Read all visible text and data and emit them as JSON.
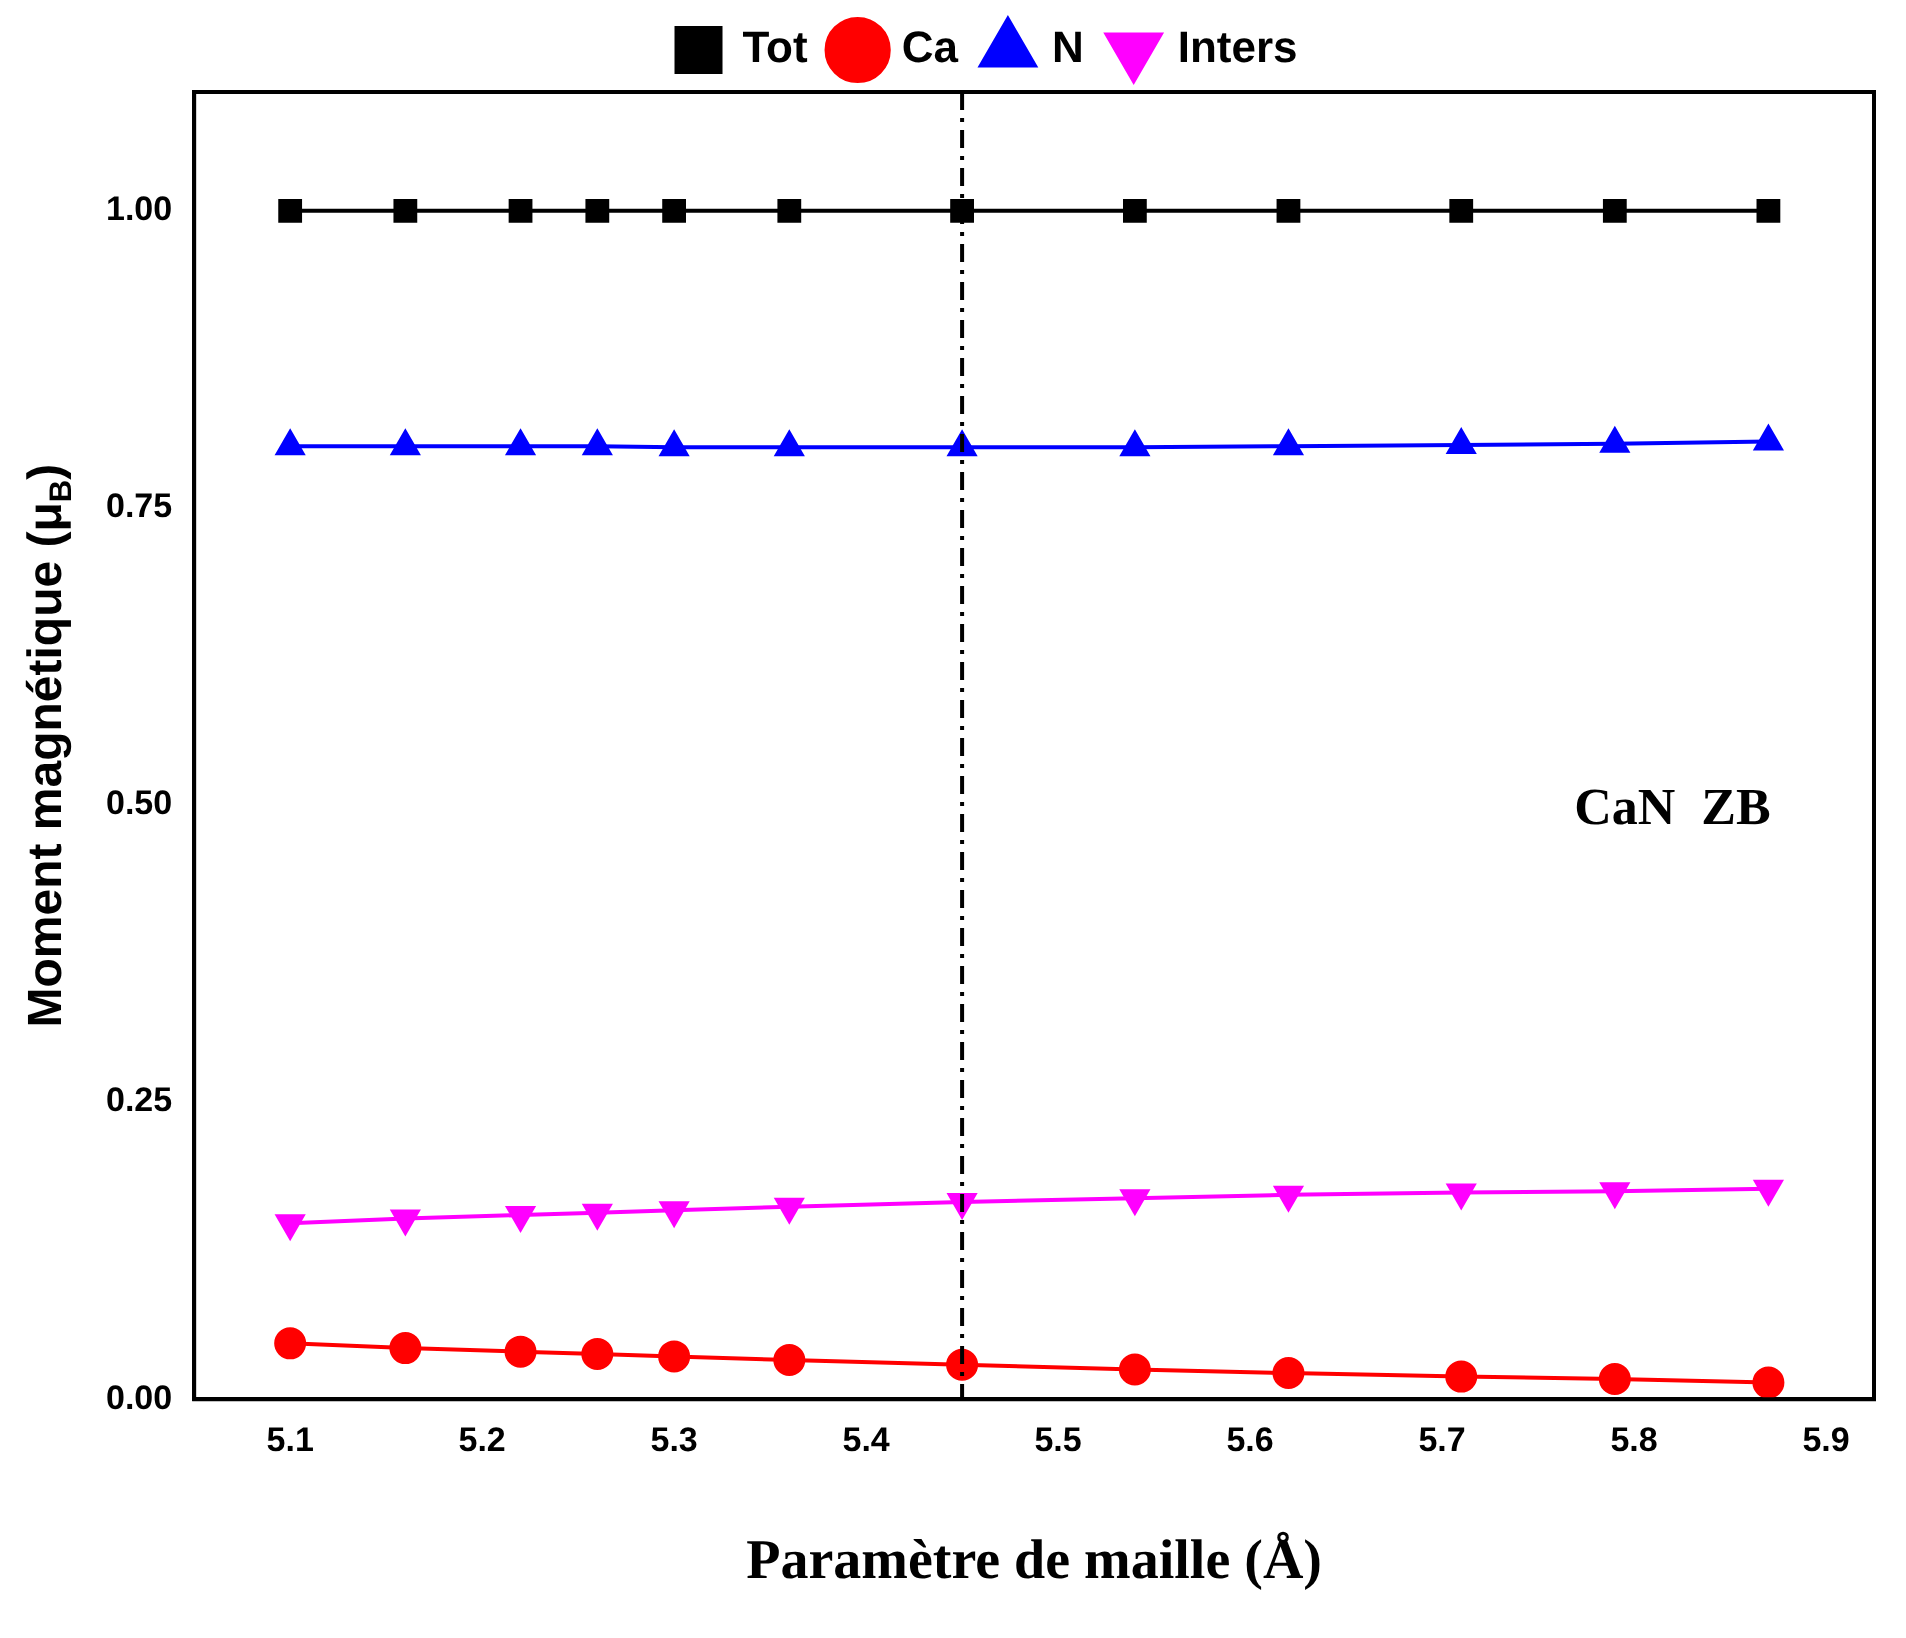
{
  "chart_data": {
    "type": "line",
    "xlabel": "Paramètre de maille (Å)",
    "ylabel": "Moment magnétique (μ$_{B}$)",
    "x": [
      5.1,
      5.16,
      5.22,
      5.26,
      5.3,
      5.36,
      5.45,
      5.54,
      5.62,
      5.71,
      5.79,
      5.87
    ],
    "series": [
      {
        "name": "Tot",
        "color": "#000000",
        "marker": "square",
        "values": [
          1.0,
          1.0,
          1.0,
          1.0,
          1.0,
          1.0,
          1.0,
          1.0,
          1.0,
          1.0,
          1.0,
          1.0
        ]
      },
      {
        "name": "Ca",
        "color": "#ff0000",
        "marker": "circle",
        "values": [
          0.047,
          0.043,
          0.04,
          0.038,
          0.036,
          0.033,
          0.029,
          0.025,
          0.022,
          0.019,
          0.017,
          0.014
        ]
      },
      {
        "name": "N",
        "color": "#0000ff",
        "marker": "triangle",
        "values": [
          0.802,
          0.802,
          0.802,
          0.802,
          0.801,
          0.801,
          0.801,
          0.801,
          0.802,
          0.803,
          0.804,
          0.806
        ]
      },
      {
        "name": "Inters",
        "color": "#ff00ff",
        "marker": "triangle-down",
        "values": [
          0.148,
          0.152,
          0.155,
          0.157,
          0.159,
          0.162,
          0.166,
          0.169,
          0.172,
          0.174,
          0.175,
          0.177
        ]
      }
    ],
    "xlim": [
      5.05,
      5.925
    ],
    "xticks": [
      5.1,
      5.2,
      5.3,
      5.4,
      5.5,
      5.6,
      5.7,
      5.8,
      5.9
    ],
    "ylim": [
      0,
      1.1
    ],
    "yticks": [
      {
        "value": 0,
        "label": "0.00"
      },
      {
        "value": 0.25,
        "label": "0.25"
      },
      {
        "value": 0.5,
        "label": "0.50"
      },
      {
        "value": 0.75,
        "label": "0.75"
      },
      {
        "value": 1,
        "label": "1.00"
      }
    ],
    "ref_lines": [
      {
        "axis": "x",
        "value": 5.45,
        "color": "#000000",
        "line_style": "dashed"
      }
    ],
    "annotations": [
      "CaN  ZB"
    ],
    "legend": "top",
    "grid": false,
    "line_style": "solid"
  }
}
